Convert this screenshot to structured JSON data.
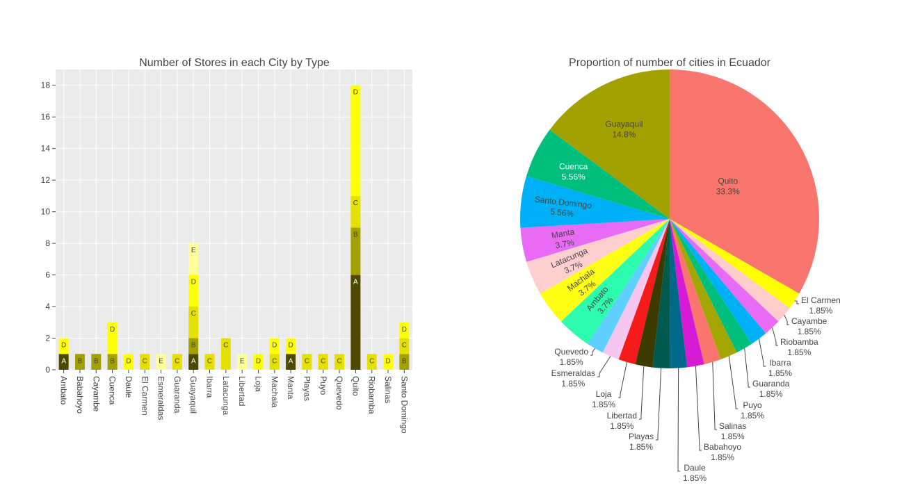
{
  "chart_data": [
    {
      "type": "bar",
      "stacked": true,
      "title": "Number of Stores in each City by Type",
      "xlabel": "",
      "ylabel": "",
      "ylim": [
        0,
        19
      ],
      "yticks": [
        0,
        2,
        4,
        6,
        8,
        10,
        12,
        14,
        16,
        18
      ],
      "grid": true,
      "legend": "none",
      "categories": [
        "Ambato",
        "Babahoyo",
        "Cayambe",
        "Cuenca",
        "Daule",
        "El Carmen",
        "Esmeraldas",
        "Guaranda",
        "Guayaquil",
        "Ibarra",
        "Latacunga",
        "Libertad",
        "Loja",
        "Machala",
        "Manta",
        "Playas",
        "Puyo",
        "Quevedo",
        "Quito",
        "Riobamba",
        "Salinas",
        "Santo Domingo"
      ],
      "series": [
        {
          "label": "A",
          "color": "#4d4a00",
          "text_color": "#ffffff",
          "values": [
            1,
            0,
            0,
            0,
            0,
            0,
            0,
            0,
            1,
            0,
            0,
            0,
            0,
            0,
            1,
            0,
            0,
            0,
            6,
            0,
            0,
            0
          ]
        },
        {
          "label": "B",
          "color": "#a3a100",
          "text_color": "#444444",
          "values": [
            0,
            1,
            1,
            1,
            0,
            0,
            0,
            0,
            1,
            0,
            0,
            0,
            0,
            0,
            0,
            0,
            0,
            0,
            3,
            0,
            0,
            1
          ]
        },
        {
          "label": "C",
          "color": "#e5e000",
          "text_color": "#444444",
          "values": [
            0,
            0,
            0,
            0,
            0,
            1,
            0,
            1,
            2,
            1,
            2,
            0,
            0,
            1,
            0,
            1,
            1,
            1,
            2,
            1,
            0,
            1
          ]
        },
        {
          "label": "D",
          "color": "#ffff00",
          "text_color": "#444444",
          "values": [
            1,
            0,
            0,
            2,
            1,
            0,
            0,
            0,
            2,
            0,
            0,
            0,
            1,
            1,
            1,
            0,
            0,
            0,
            7,
            0,
            1,
            1
          ]
        },
        {
          "label": "E",
          "color": "#ffff99",
          "text_color": "#444444",
          "values": [
            0,
            0,
            0,
            0,
            0,
            0,
            1,
            0,
            2,
            0,
            0,
            1,
            0,
            0,
            0,
            0,
            0,
            0,
            0,
            0,
            0,
            0
          ]
        }
      ]
    },
    {
      "type": "pie",
      "title": "Proportion of number of cities in Ecuador",
      "slices": [
        {
          "label": "Quito",
          "value": 33.3,
          "pct": "33.3%",
          "color": "#f8766d"
        },
        {
          "label": "El Carmen",
          "value": 1.85,
          "pct": "1.85%",
          "color": "#ffff00"
        },
        {
          "label": "Cayambe",
          "value": 1.85,
          "pct": "1.85%",
          "color": "#ffcccc"
        },
        {
          "label": "Riobamba",
          "value": 1.85,
          "pct": "1.85%",
          "color": "#e76bf3"
        },
        {
          "label": "Ibarra",
          "value": 1.85,
          "pct": "1.85%",
          "color": "#00b0f6"
        },
        {
          "label": "Guaranda",
          "value": 1.85,
          "pct": "1.85%",
          "color": "#00bf7d"
        },
        {
          "label": "Puyo",
          "value": 1.85,
          "pct": "1.85%",
          "color": "#a3a500"
        },
        {
          "label": "Salinas",
          "value": 1.85,
          "pct": "1.85%",
          "color": "#f8766d"
        },
        {
          "label": "Babahoyo",
          "value": 1.85,
          "pct": "1.85%",
          "color": "#d61ad6"
        },
        {
          "label": "Daule",
          "value": 1.85,
          "pct": "1.85%",
          "color": "#00688b"
        },
        {
          "label": "Playas",
          "value": 1.85,
          "pct": "1.85%",
          "color": "#005a4e"
        },
        {
          "label": "Libertad",
          "value": 1.85,
          "pct": "1.85%",
          "color": "#3d3a00"
        },
        {
          "label": "Loja",
          "value": 1.85,
          "pct": "1.85%",
          "color": "#f51b1b"
        },
        {
          "label": "Esmeraldas",
          "value": 1.85,
          "pct": "1.85%",
          "color": "#f5c6f0"
        },
        {
          "label": "Quevedo",
          "value": 1.85,
          "pct": "1.85%",
          "color": "#5ecfff"
        },
        {
          "label": "Ambato",
          "value": 3.7,
          "pct": "3.7%",
          "color": "#2dfcae"
        },
        {
          "label": "Machala",
          "value": 3.7,
          "pct": "3.7%",
          "color": "#ffff14"
        },
        {
          "label": "Latacunga",
          "value": 3.7,
          "pct": "3.7%",
          "color": "#ffcfcf"
        },
        {
          "label": "Manta",
          "value": 3.7,
          "pct": "3.7%",
          "color": "#e76bf3"
        },
        {
          "label": "Santo Domingo",
          "value": 5.56,
          "pct": "5.56%",
          "color": "#00b0f6"
        },
        {
          "label": "Cuenca",
          "value": 5.56,
          "pct": "5.56%",
          "color": "#00bf7d"
        },
        {
          "label": "Guayaquil",
          "value": 14.8,
          "pct": "14.8%",
          "color": "#a3a100"
        }
      ]
    }
  ]
}
